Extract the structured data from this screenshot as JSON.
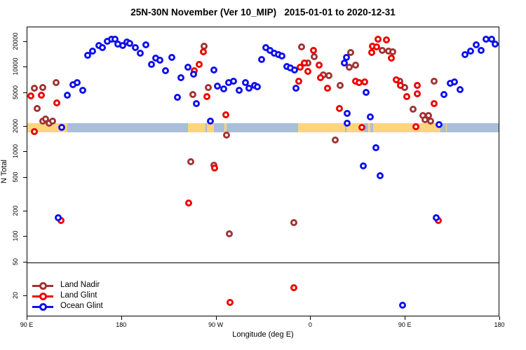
{
  "title": "25N-30N November (Ver 10_MIP)   2015-01-01 to 2020-12-31",
  "x_axis": {
    "label": "Longitude (deg E)",
    "note": "axis runs 90E eastward around the globe to 180 (values 90..540 continuous)",
    "range": [
      90,
      540
    ],
    "ticks": [
      {
        "pos": 90,
        "label": "90 E"
      },
      {
        "pos": 180,
        "label": "180"
      },
      {
        "pos": 270,
        "label": "90 W"
      },
      {
        "pos": 360,
        "label": "0"
      },
      {
        "pos": 450,
        "label": "90 E"
      },
      {
        "pos": 540,
        "label": "180"
      }
    ]
  },
  "y_axis": {
    "label": "N Total",
    "scale": "log10",
    "ticks": [
      20000,
      10000,
      5000,
      2000,
      1000,
      500,
      200,
      100,
      50,
      20
    ]
  },
  "reference_line_n": 50,
  "legend": [
    {
      "label": "Land Nadir",
      "color": "#A03434"
    },
    {
      "label": "Land Glint",
      "color": "#EE0000"
    },
    {
      "label": "Ocean Glint",
      "color": "#1010EE"
    }
  ],
  "surface_band": {
    "description": "land/ocean map strip drawn at N=2000 level",
    "center_n": 2000,
    "land_color": "#FFD47E",
    "ocean_color": "#A9BED9",
    "segments": [
      {
        "type": "land",
        "from": 90,
        "to": 128.2
      },
      {
        "type": "ocean",
        "from": 128.2,
        "to": 242.7
      },
      {
        "type": "land",
        "from": 242.7,
        "to": 259.3
      },
      {
        "type": "ocean",
        "from": 259.3,
        "to": 261.0
      },
      {
        "type": "land",
        "from": 261.0,
        "to": 267.7
      },
      {
        "type": "ocean",
        "from": 267.7,
        "to": 277.9
      },
      {
        "type": "land",
        "from": 277.9,
        "to": 279.3
      },
      {
        "type": "ocean",
        "from": 279.3,
        "to": 348.0
      },
      {
        "type": "land",
        "from": 348.0,
        "to": 392.3
      },
      {
        "type": "ocean",
        "from": 392.3,
        "to": 394.0
      },
      {
        "type": "land",
        "from": 394.0,
        "to": 410.3
      },
      {
        "type": "ocean",
        "from": 410.3,
        "to": 414.3
      },
      {
        "type": "land",
        "from": 414.3,
        "to": 416.8
      },
      {
        "type": "ocean",
        "from": 416.8,
        "to": 419.2
      },
      {
        "type": "land",
        "from": 419.2,
        "to": 483.1
      },
      {
        "type": "ocean",
        "from": 483.1,
        "to": 488.3
      },
      {
        "type": "land",
        "from": 488.3,
        "to": 489.2
      },
      {
        "type": "ocean",
        "from": 489.2,
        "to": 540
      }
    ]
  },
  "chart_data": {
    "type": "scatter",
    "title": "25N-30N November (Ver 10_MIP)   2015-01-01 to 2020-12-31",
    "xlabel": "Longitude (deg E)",
    "ylabel": "N Total",
    "xlim": [
      90,
      540
    ],
    "ylim_log": [
      11,
      30000
    ],
    "grid": false,
    "legend_position": "bottom-left",
    "marker": "open-circle",
    "series": [
      {
        "name": "Land Nadir",
        "color": "#A03434",
        "points": [
          [
            96.7,
            5700
          ],
          [
            104.7,
            5800
          ],
          [
            117.5,
            6600
          ],
          [
            99.4,
            3300
          ],
          [
            104.8,
            2330
          ],
          [
            107.4,
            2480
          ],
          [
            110.8,
            2190
          ],
          [
            114.1,
            2330
          ],
          [
            258.1,
            17900
          ],
          [
            262.1,
            5800
          ],
          [
            247.4,
            4800
          ],
          [
            245.4,
            770
          ],
          [
            267.5,
            700
          ],
          [
            279.5,
            1600
          ],
          [
            282.2,
            108
          ],
          [
            351.1,
            17600
          ],
          [
            357.2,
            11300
          ],
          [
            363.2,
            13500
          ],
          [
            371.9,
            8150
          ],
          [
            377.2,
            8000
          ],
          [
            343.8,
            148
          ],
          [
            387.9,
            6100
          ],
          [
            396.6,
            10100
          ],
          [
            402.6,
            10600
          ],
          [
            398.0,
            15100
          ],
          [
            428.1,
            15850
          ],
          [
            434.1,
            15500
          ],
          [
            438.1,
            15200
          ],
          [
            444.8,
            6950
          ],
          [
            449.5,
            5800
          ],
          [
            457.5,
            3230
          ],
          [
            477.0,
            6950
          ],
          [
            383.2,
            1390
          ],
          [
            466.3,
            2700
          ],
          [
            471.6,
            2700
          ],
          [
            468.3,
            2400
          ],
          [
            473.6,
            2350
          ]
        ]
      },
      {
        "name": "Land Glint",
        "color": "#EE0000",
        "points": [
          [
            93.3,
            4650
          ],
          [
            103.4,
            4750
          ],
          [
            118.1,
            3850
          ],
          [
            96.7,
            1750
          ],
          [
            257.4,
            15400
          ],
          [
            260.8,
            4550
          ],
          [
            253.4,
            10900
          ],
          [
            248.7,
            9200
          ],
          [
            278.8,
            2750
          ],
          [
            268.1,
            650
          ],
          [
            243.4,
            250
          ],
          [
            122.1,
            155
          ],
          [
            282.9,
            17
          ],
          [
            353.8,
            11200
          ],
          [
            362.5,
            15850
          ],
          [
            367.9,
            10650
          ],
          [
            357.2,
            8950
          ],
          [
            369.2,
            7600
          ],
          [
            375.9,
            5700
          ],
          [
            348.5,
            6950
          ],
          [
            349.8,
            10150
          ],
          [
            387.3,
            3290
          ],
          [
            402.6,
            6850
          ],
          [
            405.9,
            6600
          ],
          [
            411.3,
            6700
          ],
          [
            424.1,
            21500
          ],
          [
            432.1,
            21200
          ],
          [
            418.7,
            17900
          ],
          [
            422.7,
            17600
          ],
          [
            418.1,
            15100
          ],
          [
            436.2,
            12800
          ],
          [
            441.5,
            7150
          ],
          [
            445.5,
            6100
          ],
          [
            451.5,
            4500
          ],
          [
            461.5,
            6200
          ],
          [
            461.5,
            4870
          ],
          [
            477.0,
            3720
          ],
          [
            481.0,
            155
          ],
          [
            343.8,
            25
          ],
          [
            408.5,
            1950
          ],
          [
            459.6,
            2000
          ]
        ]
      },
      {
        "name": "Ocean Glint",
        "color": "#1010EE",
        "points": [
          [
            147.6,
            13800
          ],
          [
            152.3,
            15700
          ],
          [
            158.3,
            18300
          ],
          [
            161.6,
            17200
          ],
          [
            166.3,
            20400
          ],
          [
            170.3,
            21700
          ],
          [
            173.7,
            21700
          ],
          [
            176.4,
            18900
          ],
          [
            181.1,
            18300
          ],
          [
            185.1,
            20000
          ],
          [
            187.8,
            19200
          ],
          [
            192.5,
            17200
          ],
          [
            197.8,
            14800
          ],
          [
            202.5,
            18600
          ],
          [
            208.5,
            10900
          ],
          [
            211.9,
            12800
          ],
          [
            215.9,
            12100
          ],
          [
            221.2,
            9240
          ],
          [
            227.3,
            13200
          ],
          [
            232.6,
            4460
          ],
          [
            236.0,
            7600
          ],
          [
            242.7,
            10000
          ],
          [
            248.1,
            8330
          ],
          [
            128.2,
            4730
          ],
          [
            133.5,
            6220
          ],
          [
            137.5,
            6640
          ],
          [
            142.9,
            5350
          ],
          [
            122.8,
            1980
          ],
          [
            267.5,
            9420
          ],
          [
            250.7,
            3740
          ],
          [
            264.1,
            2320
          ],
          [
            270.8,
            5980
          ],
          [
            276.8,
            5560
          ],
          [
            281.5,
            6640
          ],
          [
            286.2,
            6950
          ],
          [
            291.5,
            5350
          ],
          [
            297.6,
            6640
          ],
          [
            300.9,
            5660
          ],
          [
            306.3,
            6100
          ],
          [
            309.0,
            5900
          ],
          [
            313.0,
            12350
          ],
          [
            317.0,
            17200
          ],
          [
            321.0,
            15850
          ],
          [
            325.0,
            14750
          ],
          [
            329.0,
            14280
          ],
          [
            332.4,
            13760
          ],
          [
            337.1,
            10300
          ],
          [
            340.4,
            9800
          ],
          [
            344.4,
            9420
          ],
          [
            345.8,
            5660
          ],
          [
            394.0,
            13200
          ],
          [
            392.0,
            11200
          ],
          [
            412.7,
            5050
          ],
          [
            486.4,
            4780
          ],
          [
            492.4,
            6500
          ],
          [
            496.4,
            6700
          ],
          [
            501.8,
            5460
          ],
          [
            506.4,
            14280
          ],
          [
            511.8,
            15690
          ],
          [
            517.2,
            18600
          ],
          [
            521.9,
            15850
          ],
          [
            526.6,
            21500
          ],
          [
            531.9,
            21700
          ],
          [
            535.3,
            18900
          ],
          [
            481.7,
            2100
          ],
          [
            422.0,
            1120
          ],
          [
            410.0,
            695
          ],
          [
            426.1,
            530
          ],
          [
            479.0,
            169
          ],
          [
            119.5,
            169
          ],
          [
            447.5,
            15.5
          ],
          [
            394.7,
            2880
          ],
          [
            394.7,
            2200
          ],
          [
            416.7,
            2620
          ]
        ]
      }
    ]
  }
}
